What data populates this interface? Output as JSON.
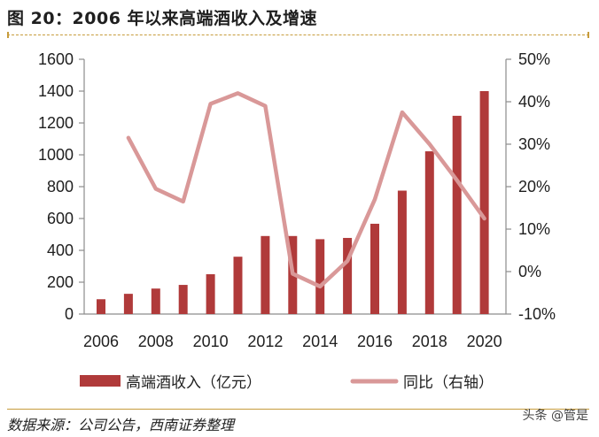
{
  "header": {
    "title": "图 20：2006 年以来高端酒收入及增速"
  },
  "footer": {
    "source": "数据来源：公司公告，西南证券整理",
    "watermark": "头条 @管是"
  },
  "colors": {
    "bar": "#b03a3a",
    "line": "#d99898",
    "axis": "#8c8c8c",
    "accent": "#c79c3c"
  },
  "chart_data": {
    "type": "bar",
    "title": "",
    "x": [
      2006,
      2007,
      2008,
      2009,
      2010,
      2011,
      2012,
      2013,
      2014,
      2015,
      2016,
      2017,
      2018,
      2019,
      2020
    ],
    "x_tick_labels": [
      "2006",
      "2008",
      "2010",
      "2012",
      "2014",
      "2016",
      "2018",
      "2020"
    ],
    "series": [
      {
        "name": "高端酒收入（亿元）",
        "type": "bar",
        "axis": "left",
        "values": [
          93,
          127,
          160,
          183,
          250,
          360,
          490,
          490,
          470,
          478,
          567,
          775,
          1022,
          1245,
          1400
        ]
      },
      {
        "name": "同比（右轴）",
        "type": "line",
        "axis": "right",
        "values": [
          null,
          31.5,
          19.5,
          16.5,
          39.5,
          42,
          39,
          -0.5,
          -3.5,
          2.5,
          17,
          37.5,
          30,
          21.5,
          12.5
        ]
      }
    ],
    "y_left": {
      "ylim": [
        0,
        1600
      ],
      "ticks": [
        "1600",
        "1400",
        "1200",
        "1000",
        "800",
        "600",
        "400",
        "200",
        "0"
      ]
    },
    "y_right": {
      "ylim": [
        -10,
        50
      ],
      "ticks": [
        "50%",
        "40%",
        "30%",
        "20%",
        "10%",
        "0%",
        "-10%"
      ]
    },
    "legend": [
      {
        "label": "高端酒收入（亿元）",
        "kind": "bar"
      },
      {
        "label": "同比（右轴）",
        "kind": "line"
      }
    ],
    "legend_position": "bottom",
    "grid": false
  }
}
